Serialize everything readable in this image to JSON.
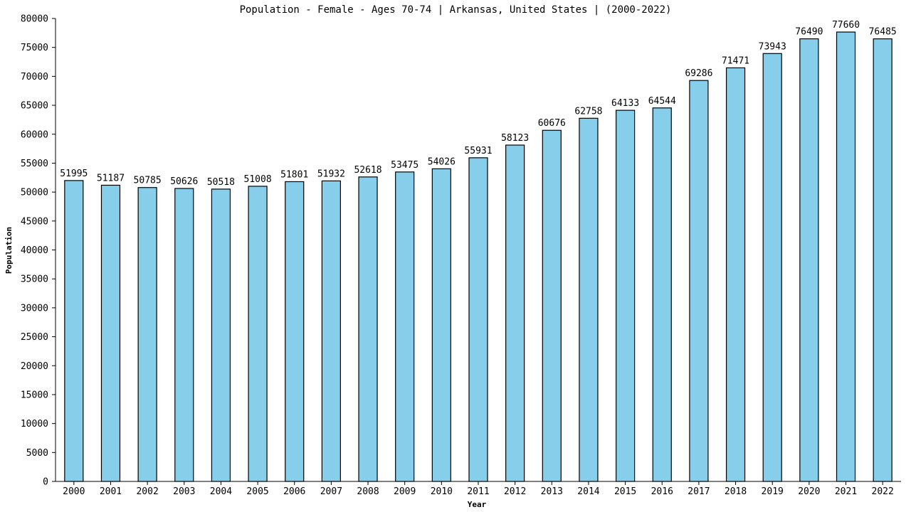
{
  "chart_data": {
    "type": "bar",
    "title": "Population - Female - Ages 70-74 | Arkansas, United States |  (2000-2022)",
    "xlabel": "Year",
    "ylabel": "Population",
    "ylim": [
      0,
      80000
    ],
    "ytick_step": 5000,
    "grid": false,
    "bar_color": "#87CEEB",
    "categories": [
      "2000",
      "2001",
      "2002",
      "2003",
      "2004",
      "2005",
      "2006",
      "2007",
      "2008",
      "2009",
      "2010",
      "2011",
      "2012",
      "2013",
      "2014",
      "2015",
      "2016",
      "2017",
      "2018",
      "2019",
      "2020",
      "2021",
      "2022"
    ],
    "values": [
      51995,
      51187,
      50785,
      50626,
      50518,
      51008,
      51801,
      51932,
      52618,
      53475,
      54026,
      55931,
      58123,
      60676,
      62758,
      64133,
      64544,
      69286,
      71471,
      73943,
      76490,
      77660,
      76485
    ]
  }
}
